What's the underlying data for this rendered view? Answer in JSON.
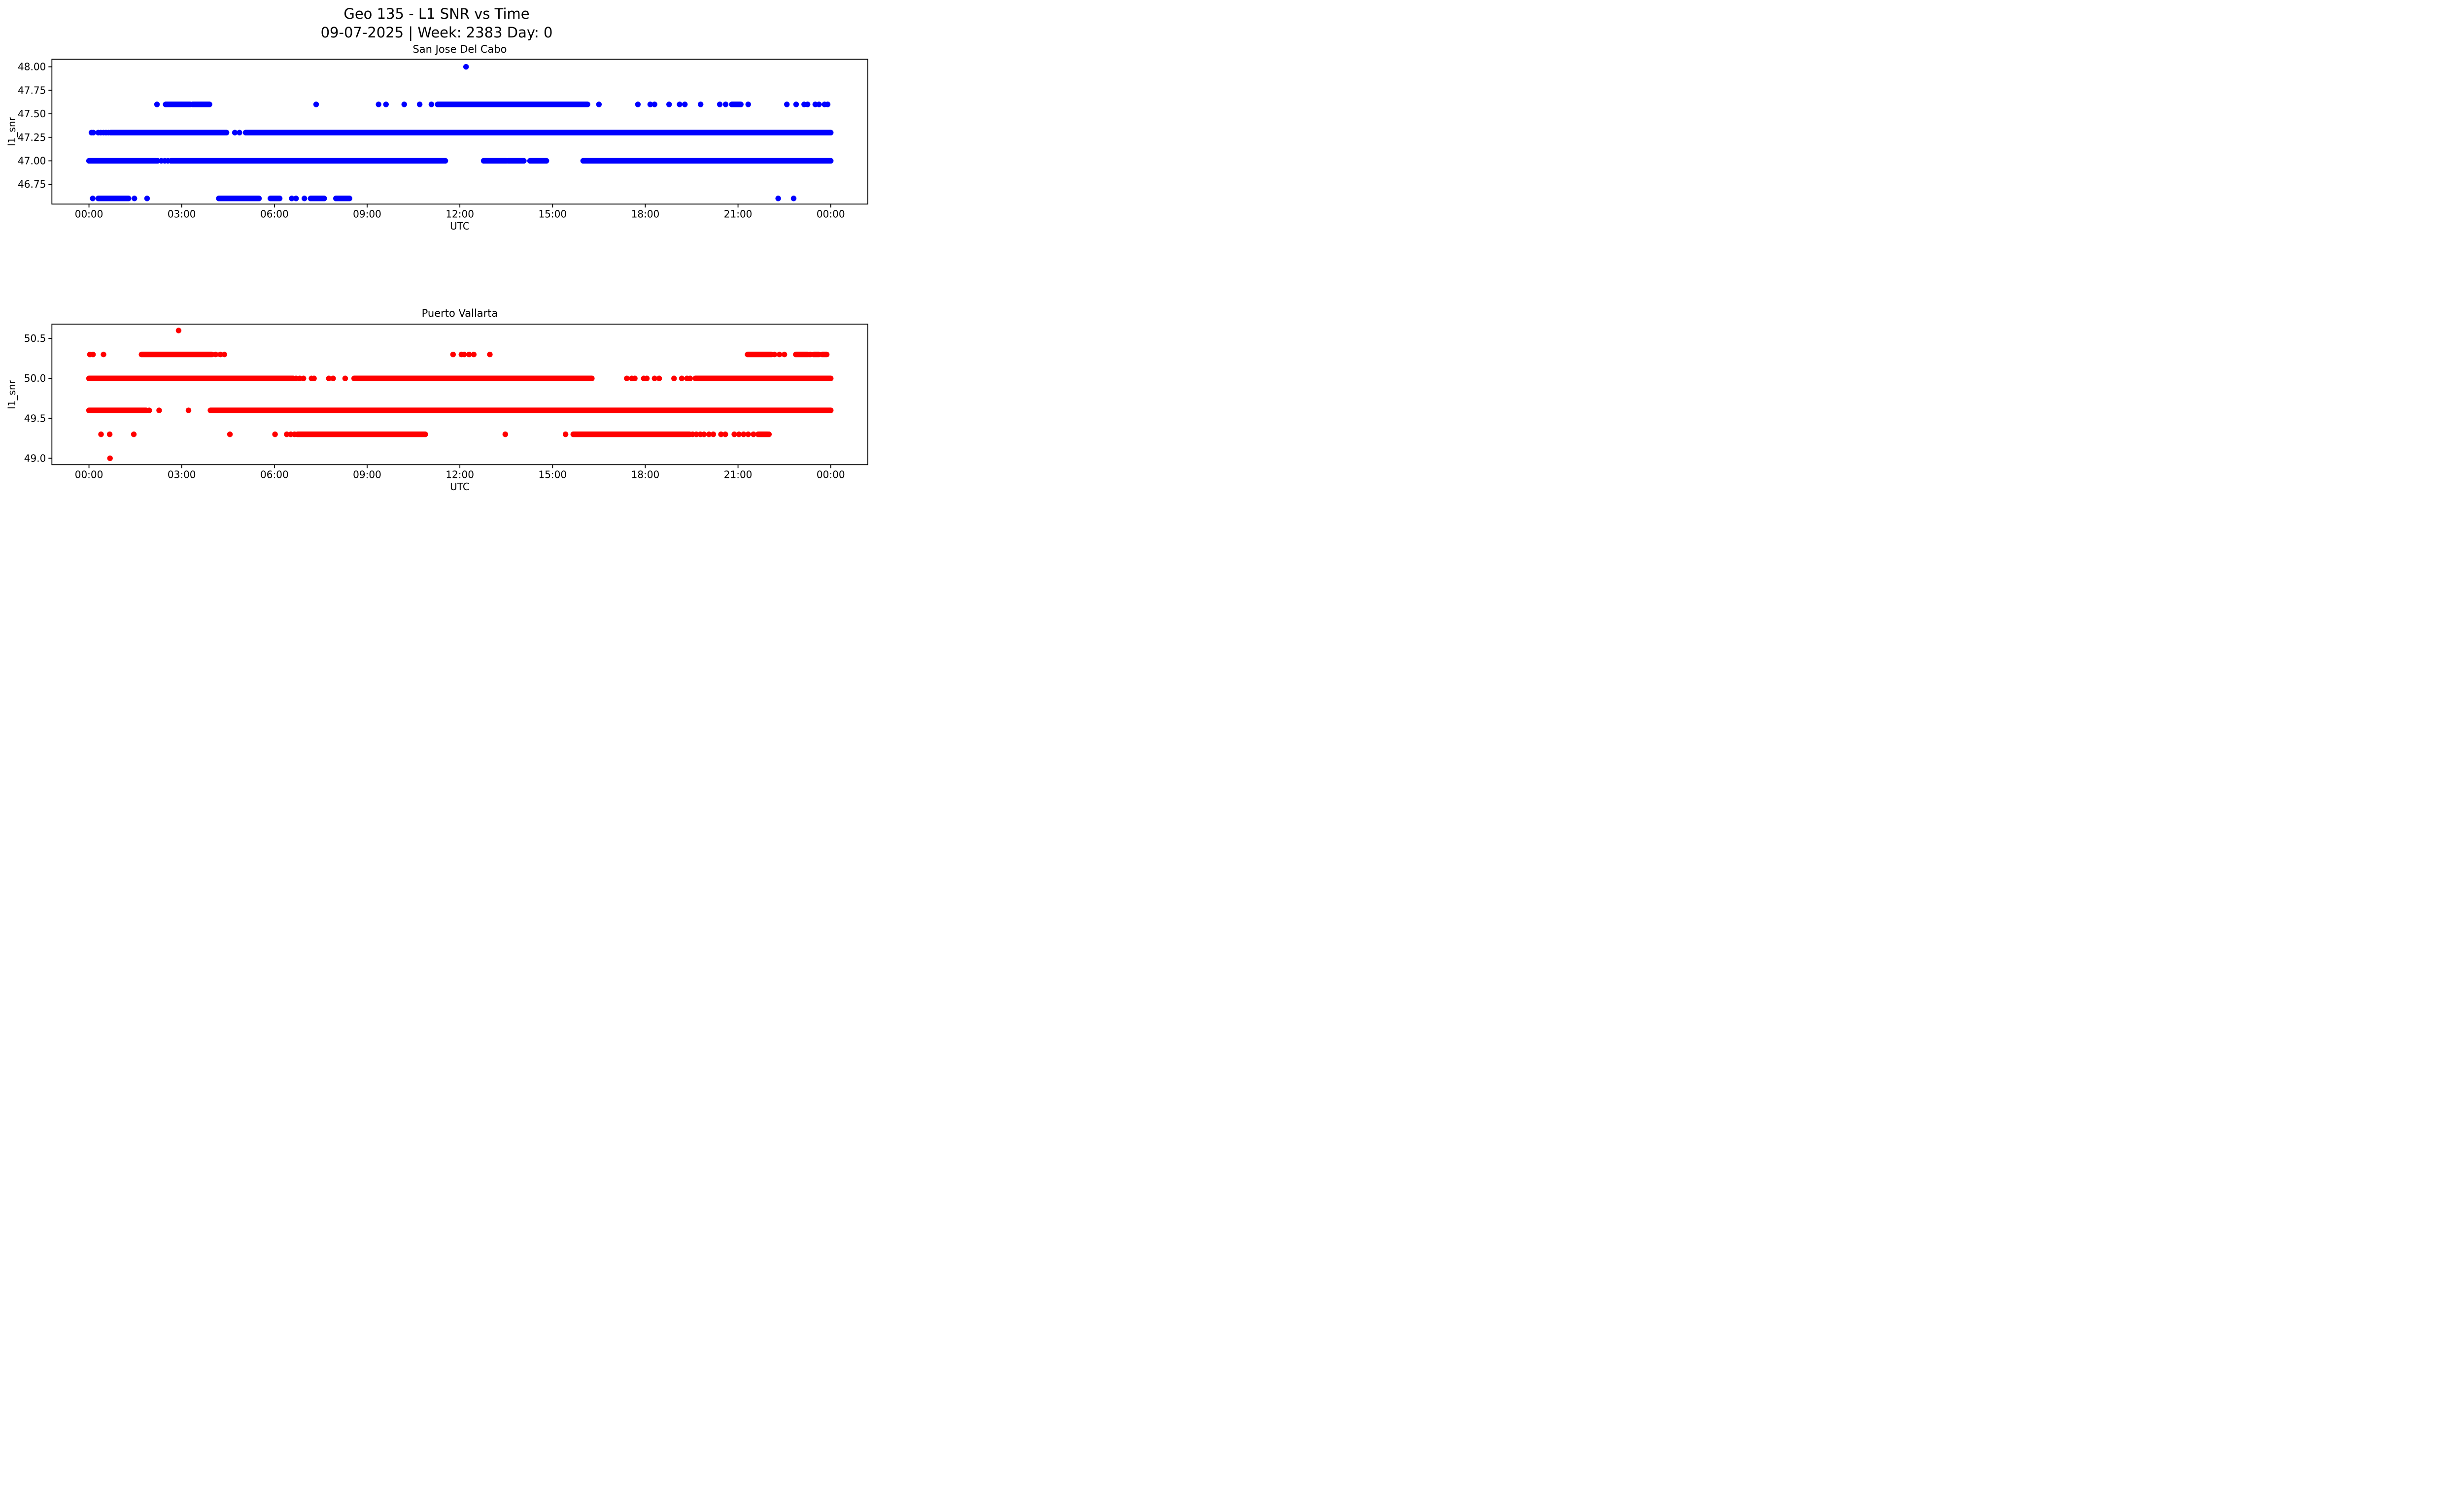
{
  "figure": {
    "title_line1": "Geo 135 - L1 SNR vs Time",
    "title_line2": "09-07-2025 | Week: 2383 Day: 0"
  },
  "chart_data": [
    {
      "type": "scatter",
      "title": "San Jose Del Cabo",
      "xlabel": "UTC",
      "ylabel": "l1_snr",
      "color": "#0000ff",
      "legend": "none",
      "grid": false,
      "xlim_hours": [
        -1.2,
        25.2
      ],
      "ylim": [
        46.54,
        48.08
      ],
      "x_ticks": [
        {
          "hour": 0,
          "label": "00:00"
        },
        {
          "hour": 3,
          "label": "03:00"
        },
        {
          "hour": 6,
          "label": "06:00"
        },
        {
          "hour": 9,
          "label": "09:00"
        },
        {
          "hour": 12,
          "label": "12:00"
        },
        {
          "hour": 15,
          "label": "15:00"
        },
        {
          "hour": 18,
          "label": "18:00"
        },
        {
          "hour": 21,
          "label": "21:00"
        },
        {
          "hour": 24,
          "label": "00:00"
        }
      ],
      "y_ticks": [
        {
          "value": 48.0,
          "label": "48.00"
        },
        {
          "value": 47.75,
          "label": "47.75"
        },
        {
          "value": 47.5,
          "label": "47.50"
        },
        {
          "value": 47.25,
          "label": "47.25"
        },
        {
          "value": 47.0,
          "label": "47.00"
        },
        {
          "value": 46.75,
          "label": "46.75"
        }
      ],
      "levels": [
        {
          "snr": 48.0,
          "points": [
            12.2
          ],
          "segments": []
        },
        {
          "snr": 47.6,
          "points": [
            2.2,
            7.35,
            9.37,
            9.61,
            10.2,
            10.7,
            11.08,
            16.5,
            17.76,
            18.16,
            18.3,
            18.77,
            19.11,
            19.28,
            19.79,
            20.41,
            20.6,
            21.33,
            22.58,
            22.88,
            23.14,
            23.25,
            23.5,
            23.62,
            23.8,
            23.9
          ],
          "segments": [
            [
              2.48,
              3.27
            ],
            [
              3.35,
              3.9
            ],
            [
              11.28,
              16.13
            ],
            [
              20.8,
              21.09
            ]
          ]
        },
        {
          "snr": 47.3,
          "points": [
            0.08,
            0.14,
            0.3,
            0.38,
            0.47,
            0.55,
            0.63,
            4.72,
            4.87
          ],
          "segments": [
            [
              0.7,
              4.45
            ],
            [
              5.07,
              24.0
            ]
          ]
        },
        {
          "snr": 47.0,
          "points": [
            2.22,
            2.34,
            2.45,
            2.55
          ],
          "segments": [
            [
              0.0,
              2.17
            ],
            [
              2.65,
              11.53
            ],
            [
              12.77,
              13.5
            ],
            [
              13.56,
              14.07
            ],
            [
              14.27,
              14.8
            ],
            [
              15.99,
              24.0
            ]
          ]
        },
        {
          "snr": 46.6,
          "points": [
            0.12,
            1.47,
            1.88,
            6.56,
            6.7,
            6.97,
            22.3,
            22.8
          ],
          "segments": [
            [
              0.3,
              1.28
            ],
            [
              4.2,
              5.5
            ],
            [
              5.87,
              6.17
            ],
            [
              7.17,
              7.61
            ],
            [
              7.99,
              8.43
            ]
          ]
        }
      ]
    },
    {
      "type": "scatter",
      "title": "Puerto Vallarta",
      "xlabel": "UTC",
      "ylabel": "l1_snr",
      "color": "#ff0000",
      "legend": "none",
      "grid": false,
      "xlim_hours": [
        -1.2,
        25.2
      ],
      "ylim": [
        48.92,
        50.68
      ],
      "x_ticks": [
        {
          "hour": 0,
          "label": "00:00"
        },
        {
          "hour": 3,
          "label": "03:00"
        },
        {
          "hour": 6,
          "label": "06:00"
        },
        {
          "hour": 9,
          "label": "09:00"
        },
        {
          "hour": 12,
          "label": "12:00"
        },
        {
          "hour": 15,
          "label": "15:00"
        },
        {
          "hour": 18,
          "label": "18:00"
        },
        {
          "hour": 21,
          "label": "21:00"
        },
        {
          "hour": 24,
          "label": "00:00"
        }
      ],
      "y_ticks": [
        {
          "value": 50.5,
          "label": "50.5"
        },
        {
          "value": 50.0,
          "label": "50.0"
        },
        {
          "value": 49.5,
          "label": "49.5"
        },
        {
          "value": 49.0,
          "label": "49.0"
        }
      ],
      "levels": [
        {
          "snr": 50.6,
          "points": [
            2.9
          ],
          "segments": []
        },
        {
          "snr": 50.3,
          "points": [
            0.03,
            0.13,
            0.47,
            4.1,
            4.25,
            4.38,
            11.78,
            12.05,
            12.14,
            12.3,
            12.45,
            12.97,
            22.18,
            22.34,
            22.5,
            23.3,
            23.35
          ],
          "segments": [
            [
              1.7,
              3.98
            ],
            [
              21.31,
              22.08
            ],
            [
              22.87,
              23.25
            ],
            [
              23.45,
              23.62
            ],
            [
              23.72,
              23.87
            ]
          ]
        },
        {
          "snr": 50.0,
          "points": [
            6.7,
            6.82,
            6.94,
            7.2,
            7.28,
            7.76,
            7.9,
            8.29,
            17.4,
            17.56,
            17.66,
            17.95,
            18.05,
            18.3,
            18.45,
            18.93,
            19.18,
            19.35,
            19.45
          ],
          "segments": [
            [
              0.0,
              6.61
            ],
            [
              8.58,
              16.27
            ],
            [
              19.62,
              24.0
            ]
          ]
        },
        {
          "snr": 49.6,
          "points": [
            1.95,
            2.27,
            3.22
          ],
          "segments": [
            [
              0.0,
              1.85
            ],
            [
              3.93,
              24.0
            ]
          ]
        },
        {
          "snr": 49.3,
          "points": [
            0.39,
            0.67,
            1.45,
            4.56,
            6.02,
            6.4,
            6.53,
            6.65,
            13.47,
            15.42,
            19.53,
            19.65,
            19.78,
            19.9,
            20.06,
            20.2,
            20.45,
            20.59,
            20.88,
            21.03,
            21.18,
            21.33,
            21.5,
            22.0
          ],
          "segments": [
            [
              6.75,
              10.88
            ],
            [
              15.67,
              19.43
            ],
            [
              21.65,
              21.95
            ]
          ]
        },
        {
          "snr": 49.0,
          "points": [
            0.68
          ],
          "segments": []
        }
      ]
    }
  ]
}
